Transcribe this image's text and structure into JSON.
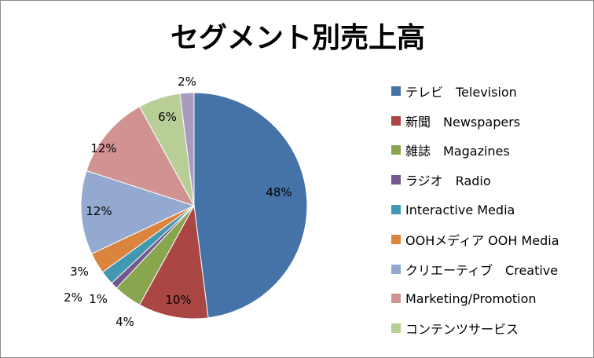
{
  "chart_data": {
    "type": "pie",
    "title": "セグメント別売上高",
    "series": [
      {
        "name": "テレビ　Television",
        "value": 48,
        "label": "48%",
        "color": "#4572A7"
      },
      {
        "name": "新聞　Newspapers",
        "value": 10,
        "label": "10%",
        "color": "#AA4643"
      },
      {
        "name": "雑誌　Magazines",
        "value": 4,
        "label": "4%",
        "color": "#89A54E"
      },
      {
        "name": "ラジオ　Radio",
        "value": 1,
        "label": "1%",
        "color": "#71588F"
      },
      {
        "name": "Interactive Media",
        "value": 2,
        "label": "2%",
        "color": "#4198AF"
      },
      {
        "name": "OOHメディア OOH Media",
        "value": 3,
        "label": "3%",
        "color": "#DB843D"
      },
      {
        "name": "クリエーティブ　Creative",
        "value": 12,
        "label": "12%",
        "color": "#93A9CF"
      },
      {
        "name": "Marketing/Promotion",
        "value": 12,
        "label": "12%",
        "color": "#D19392"
      },
      {
        "name": "コンテンツサービス",
        "value": 6,
        "label": "6%",
        "color": "#B9CD96"
      },
      {
        "name": "",
        "value": 2,
        "label": "2%",
        "color": "#A99BBD"
      }
    ],
    "start_angle_deg": 0,
    "direction": "clockwise",
    "legend_position": "right"
  }
}
